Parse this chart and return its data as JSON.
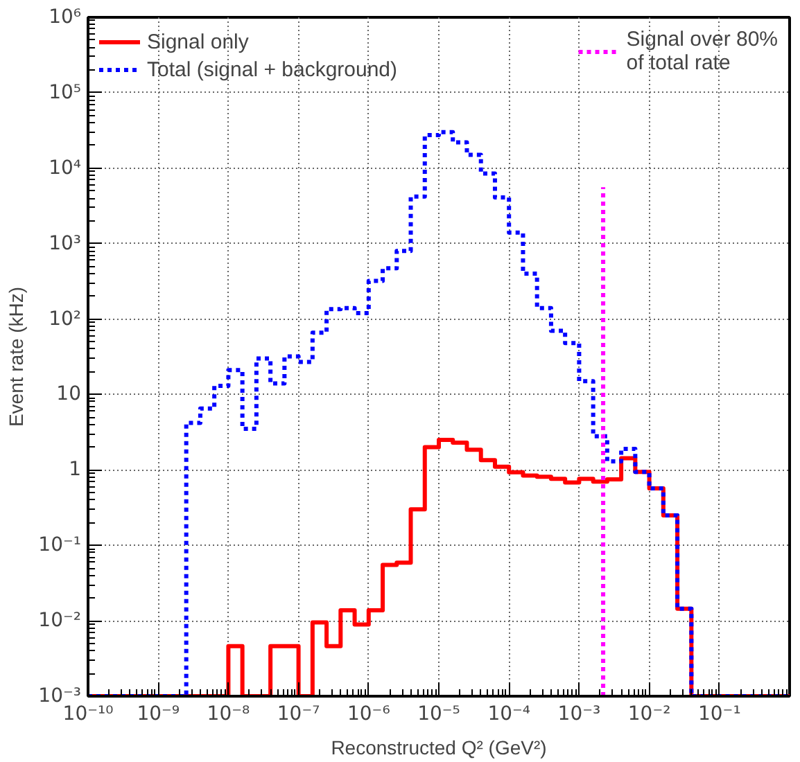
{
  "chart_data": {
    "type": "histogram",
    "xlabel": "Reconstructed Q² (GeV²)",
    "ylabel": "Event rate (kHz)",
    "log": "xy",
    "grid": true,
    "legend": "top",
    "xlim": [
      1e-10,
      1
    ],
    "ylim": [
      0.001,
      1000000
    ],
    "xticks": [
      {
        "value": 1e-10,
        "label": "10⁻¹⁰"
      },
      {
        "value": 1e-09,
        "label": "10⁻⁹"
      },
      {
        "value": 1e-08,
        "label": "10⁻⁸"
      },
      {
        "value": 1e-07,
        "label": "10⁻⁷"
      },
      {
        "value": 1e-06,
        "label": "10⁻⁶"
      },
      {
        "value": 1e-05,
        "label": "10⁻⁵"
      },
      {
        "value": 0.0001,
        "label": "10⁻⁴"
      },
      {
        "value": 0.001,
        "label": "10⁻³"
      },
      {
        "value": 0.01,
        "label": "10⁻²"
      },
      {
        "value": 0.1,
        "label": "10⁻¹"
      }
    ],
    "yticks": [
      {
        "value": 0.001,
        "label": "10⁻³"
      },
      {
        "value": 0.01,
        "label": "10⁻²"
      },
      {
        "value": 0.1,
        "label": "10⁻¹"
      },
      1,
      10,
      {
        "value": 100,
        "label": "10²"
      },
      {
        "value": 1000,
        "label": "10³"
      },
      {
        "value": 10000,
        "label": "10⁴"
      },
      {
        "value": 100000,
        "label": "10⁵"
      },
      {
        "value": 1000000,
        "label": "10⁶"
      }
    ],
    "bins": [
      1e-10,
      1.585e-10,
      2.512e-10,
      3.981e-10,
      6.31e-10,
      1e-09,
      1.585e-09,
      2.512e-09,
      3.981e-09,
      6.31e-09,
      1e-08,
      1.585e-08,
      2.512e-08,
      3.981e-08,
      6.31e-08,
      1e-07,
      1.585e-07,
      2.512e-07,
      3.981e-07,
      6.31e-07,
      1e-06,
      1.585e-06,
      2.512e-06,
      3.981e-06,
      6.31e-06,
      1e-05,
      1.585e-05,
      2.512e-05,
      3.981e-05,
      6.31e-05,
      0.0001,
      0.0001585,
      0.0002512,
      0.0003981,
      0.000631,
      0.001,
      0.001585,
      0.002512,
      0.003981,
      0.00631,
      0.01,
      0.01585,
      0.02512,
      0.03981,
      0.0631,
      0.1,
      0.1585,
      0.2512,
      0.3981,
      0.631,
      1
    ],
    "series": [
      {
        "name": "Signal only",
        "color": "#ff0000",
        "line_style": "solid",
        "values": [
          0.001,
          0.001,
          0.001,
          0.001,
          0.001,
          0.001,
          0.001,
          0.001,
          0.001,
          0.001,
          0.0046,
          0.001,
          0.001,
          0.0046,
          0.0046,
          0.001,
          0.0095,
          0.0046,
          0.0138,
          0.0089,
          0.0138,
          0.055,
          0.059,
          0.3,
          2.0,
          2.5,
          2.3,
          1.85,
          1.35,
          1.1,
          0.93,
          0.84,
          0.81,
          0.76,
          0.68,
          0.76,
          0.7,
          0.75,
          1.43,
          0.94,
          0.57,
          0.25,
          0.0144,
          0.001,
          0.001,
          0.001,
          0.001,
          0.001,
          0.001,
          0.001
        ]
      },
      {
        "name": "Total (signal + background)",
        "color": "#0000ff",
        "line_style": "dotted",
        "values": [
          0.001,
          0.001,
          0.001,
          0.001,
          0.001,
          0.001,
          0.001,
          4.2,
          6.5,
          13,
          21,
          3.5,
          30,
          14,
          32,
          27,
          66,
          135,
          140,
          120,
          320,
          470,
          800,
          4200,
          27500,
          30000,
          22000,
          15000,
          8500,
          4100,
          1400,
          400,
          140,
          70,
          48,
          15,
          2.8,
          1.3,
          1.9,
          0.94,
          0.57,
          0.25,
          0.0144,
          0.001,
          0.001,
          0.001,
          0.001,
          0.001,
          0.001,
          0.001
        ]
      },
      {
        "name": "Signal over 80%\nof total rate",
        "type": "line",
        "color": "#ff00ff",
        "line_style": "dotted",
        "x": [
          0.0022,
          0.0022
        ],
        "values": [
          0.001,
          5600
        ]
      }
    ]
  }
}
